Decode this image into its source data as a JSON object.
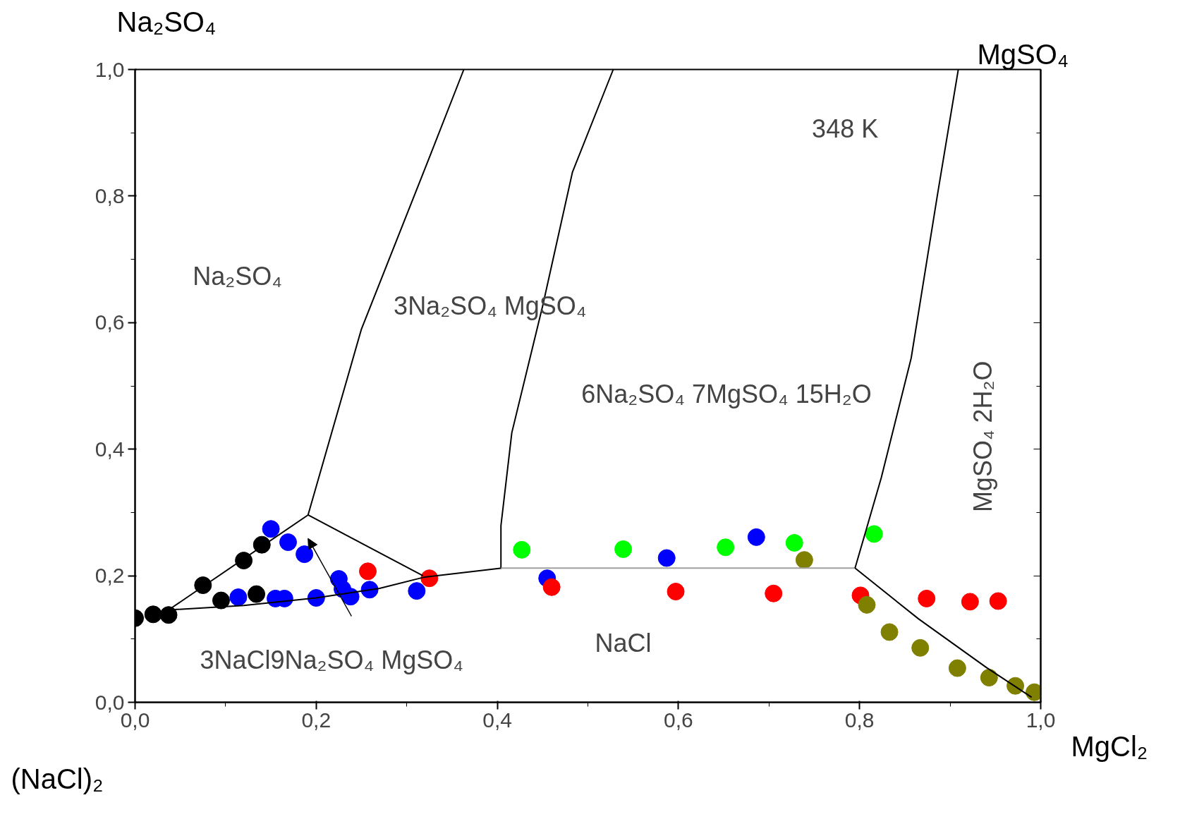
{
  "chart_data": {
    "type": "scatter",
    "xlim": [
      0,
      1
    ],
    "ylim": [
      0,
      1
    ],
    "xticks": [
      {
        "value": 0,
        "label": "0,0"
      },
      {
        "value": 0.2,
        "label": "0,2"
      },
      {
        "value": 0.4,
        "label": "0,4"
      },
      {
        "value": 0.6,
        "label": "0,6"
      },
      {
        "value": 0.8,
        "label": "0,8"
      },
      {
        "value": 1,
        "label": "1,0"
      }
    ],
    "yticks": [
      {
        "value": 0,
        "label": "0,0"
      },
      {
        "value": 0.2,
        "label": "0,2"
      },
      {
        "value": 0.4,
        "label": "0,4"
      },
      {
        "value": 0.6,
        "label": "0,6"
      },
      {
        "value": 0.8,
        "label": "0,8"
      },
      {
        "value": 1,
        "label": "1,0"
      }
    ],
    "grid": false,
    "series": [
      {
        "type": "line",
        "color": "#000000",
        "x": [
          0.037,
          0.12,
          0.2,
          0.27,
          0.32,
          0.405
        ],
        "values": [
          0.146,
          0.153,
          0.165,
          0.18,
          0.198,
          0.212
        ]
      },
      {
        "type": "line",
        "color": "#000000",
        "x": [
          0.037,
          0.191
        ],
        "values": [
          0.146,
          0.296
        ]
      },
      {
        "type": "line",
        "color": "#000000",
        "x": [
          0.191,
          0.318
        ],
        "values": [
          0.296,
          0.2
        ]
      },
      {
        "type": "line",
        "color": "#000000",
        "x": [
          0.191,
          0.25,
          0.325,
          0.363
        ],
        "values": [
          0.296,
          0.59,
          0.861,
          1.0
        ]
      },
      {
        "type": "line",
        "color": "#000000",
        "x": [
          0.404,
          0.404,
          0.416,
          0.45,
          0.483,
          0.528
        ],
        "values": [
          0.212,
          0.279,
          0.426,
          0.626,
          0.838,
          1.0
        ]
      },
      {
        "type": "line",
        "color": "#a0a0a0",
        "x": [
          0.404,
          0.795
        ],
        "values": [
          0.212,
          0.212
        ]
      },
      {
        "type": "line",
        "color": "#000000",
        "x": [
          0.795,
          0.824,
          0.857,
          0.886,
          0.909
        ],
        "values": [
          0.212,
          0.355,
          0.544,
          0.802,
          1.0
        ]
      },
      {
        "type": "line",
        "color": "#000000",
        "x": [
          0.795,
          0.865,
          0.94,
          0.99
        ],
        "values": [
          0.212,
          0.132,
          0.055,
          0.008
        ]
      },
      {
        "color": "#000000",
        "marker": "circle",
        "x": [
          0,
          0.02,
          0.037,
          0.075,
          0.095,
          0.12,
          0.134,
          0.14
        ],
        "values": [
          0.133,
          0.139,
          0.138,
          0.185,
          0.161,
          0.224,
          0.171,
          0.249
        ]
      },
      {
        "color": "#0000ff",
        "marker": "circle",
        "x": [
          0.15,
          0.169,
          0.187,
          0.114,
          0.155,
          0.165,
          0.2,
          0.225,
          0.229,
          0.238,
          0.259,
          0.311,
          0.455,
          0.587,
          0.686
        ],
        "values": [
          0.274,
          0.253,
          0.234,
          0.166,
          0.164,
          0.164,
          0.165,
          0.195,
          0.179,
          0.167,
          0.178,
          0.176,
          0.196,
          0.228,
          0.261
        ]
      },
      {
        "color": "#ff0000",
        "marker": "circle",
        "x": [
          0.257,
          0.325,
          0.46,
          0.597,
          0.705,
          0.801,
          0.874,
          0.922,
          0.953
        ],
        "values": [
          0.207,
          0.196,
          0.182,
          0.175,
          0.172,
          0.169,
          0.164,
          0.159,
          0.16
        ]
      },
      {
        "color": "#00ff00",
        "marker": "circle",
        "x": [
          0.427,
          0.539,
          0.652,
          0.728,
          0.816
        ],
        "values": [
          0.241,
          0.242,
          0.245,
          0.252,
          0.266
        ]
      },
      {
        "color": "#808000",
        "marker": "circle",
        "x": [
          0.739,
          0.808,
          0.833,
          0.867,
          0.908,
          0.943,
          0.972,
          0.993
        ],
        "values": [
          0.225,
          0.154,
          0.111,
          0.086,
          0.054,
          0.039,
          0.026,
          0.016
        ]
      }
    ],
    "annotations": [
      "Na₂SO₄",
      "MgSO₄",
      "MgCl₂",
      "(NaCl)₂",
      "348 K",
      "Na₂SO₄",
      "3Na₂SO₄ MgSO₄",
      "6Na₂SO₄ 7MgSO₄ 15H₂O",
      "MgSO₄ 2H₂O",
      "3NaCl9Na₂SO₄ MgSO₄",
      "NaCl"
    ]
  }
}
